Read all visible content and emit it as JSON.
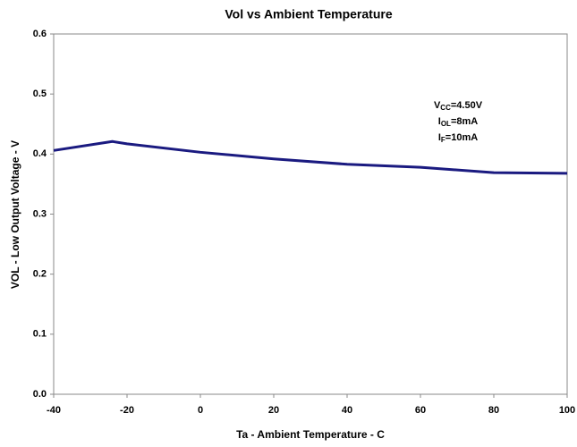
{
  "chart_data": {
    "type": "line",
    "title": "Vol  vs Ambient Temperature",
    "x_label": "Ta - Ambient Temperature - C",
    "y_label": "VOL - Low Output Voltage - V",
    "annotations": [
      {
        "main": "V",
        "sub": "CC",
        "rest": "=4.50V"
      },
      {
        "main": "I",
        "sub": "OL",
        "rest": "=8mA"
      },
      {
        "main": "I",
        "sub": "F",
        "rest": "=10mA"
      }
    ],
    "series": [
      {
        "name": "VOL",
        "color": "#1a1a80",
        "x": [
          -40,
          -24,
          -20,
          0,
          20,
          40,
          60,
          80,
          100
        ],
        "values": [
          0.406,
          0.421,
          0.417,
          0.403,
          0.392,
          0.383,
          0.378,
          0.369,
          0.368
        ]
      }
    ],
    "xlim": [
      -40,
      100
    ],
    "xticks": [
      -40,
      -20,
      0,
      20,
      40,
      60,
      80,
      100
    ],
    "ylim": [
      0,
      0.6
    ],
    "yticks": [
      {
        "value": 0,
        "label": "0.0"
      },
      0.1,
      0.2,
      0.3,
      0.4,
      0.5,
      0.6
    ]
  }
}
